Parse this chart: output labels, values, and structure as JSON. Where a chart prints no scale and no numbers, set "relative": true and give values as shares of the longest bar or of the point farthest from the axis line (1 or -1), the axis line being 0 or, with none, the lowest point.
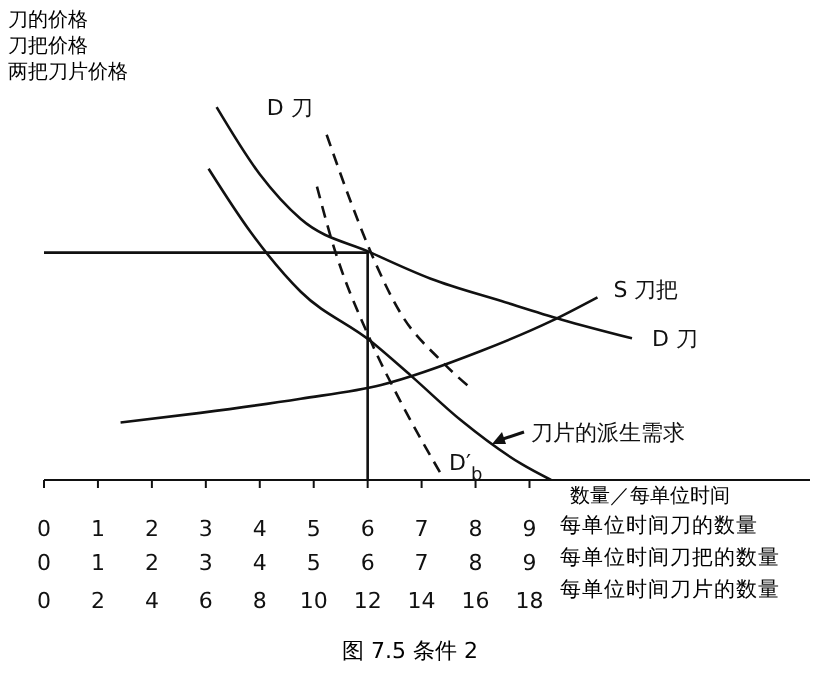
{
  "chart_data": {
    "type": "line",
    "relative": true,
    "title": "图 7.5 条件 2",
    "ylabel": "刀的价格刀把价格两把刀片价格",
    "xlabel": "数量／每单位时间",
    "xlim": [
      0,
      14.2
    ],
    "xticks": [
      0,
      1,
      2,
      3,
      4,
      5,
      6,
      7,
      8,
      9
    ],
    "x2lim": [
      0,
      28.4
    ],
    "x2ticks": [
      0,
      2,
      4,
      6,
      8,
      10,
      12,
      14,
      16,
      18
    ],
    "annotations": [
      "每单位时间刀的数量",
      "每单位时间刀把的数量",
      "每单位时间刀片的数量",
      "0",
      "1",
      "2",
      "3",
      "4",
      "5",
      "6",
      "7",
      "8",
      "9"
    ],
    "marker": "none",
    "line_style": "solid",
    "series": [
      {
        "name": "D 刀",
        "color": "#111111",
        "x": [
          3.2,
          4.0,
          4.76,
          6.06,
          7.17,
          8.48,
          9.6,
          10.9
        ],
        "values": [
          1.0,
          0.82,
          0.7,
          0.61,
          0.54,
          0.48,
          0.43,
          0.38
        ]
      },
      {
        "name": "刀片的派生需求",
        "color": "#111111",
        "x": [
          3.05,
          3.83,
          4.76,
          6.06,
          6.8,
          7.73,
          8.85,
          9.4
        ],
        "values": [
          0.835,
          0.665,
          0.505,
          0.372,
          0.28,
          0.16,
          0.043,
          0
        ]
      },
      {
        "name": "S 刀把",
        "color": "#111111",
        "x": [
          1.42,
          2.9,
          4.76,
          6.25,
          8.1,
          9.4,
          10.26
        ],
        "values": [
          0.154,
          0.18,
          0.218,
          0.255,
          0.346,
          0.426,
          0.49
        ]
      },
      {
        "name": "D 刀",
        "color": "#111111",
        "line_style": "dashed",
        "x": [
          5.24,
          5.69,
          6.06,
          6.6,
          7.36,
          7.96
        ],
        "values": [
          0.926,
          0.745,
          0.61,
          0.45,
          0.32,
          0.24
        ]
      },
      {
        "name": "D′$_{b}$",
        "color": "#111111",
        "line_style": "dashed",
        "x": [
          5.06,
          5.32,
          6.06,
          6.6,
          7.36
        ],
        "values": [
          0.787,
          0.65,
          0.372,
          0.213,
          0.016
        ]
      },
      {
        "color": "#111111",
        "x": [
          0,
          6,
          6
        ],
        "values": [
          0.61,
          0.61,
          0
        ]
      }
    ]
  }
}
